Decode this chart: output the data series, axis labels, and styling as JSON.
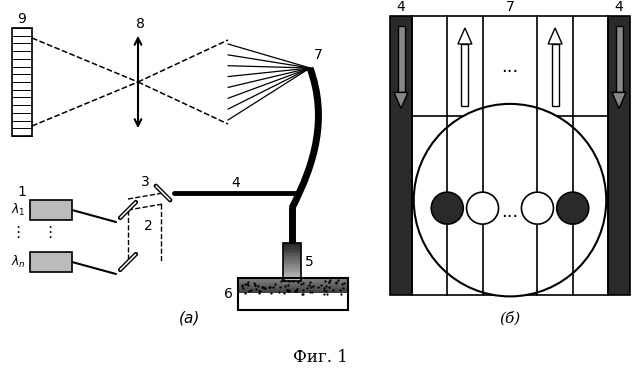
{
  "fig_width": 6.4,
  "fig_height": 3.91,
  "bg_color": "#ffffff",
  "title": "Фиг. 1",
  "label_a": "(а)",
  "label_b": "(б)"
}
